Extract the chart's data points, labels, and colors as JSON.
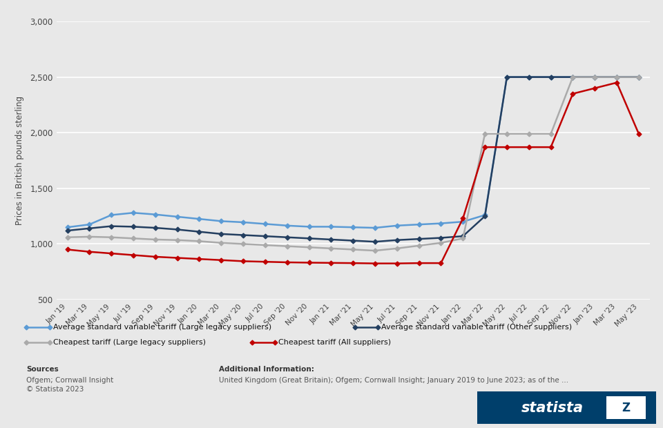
{
  "ylabel": "Prices in British pounds sterling",
  "ylim": [
    500,
    3000
  ],
  "yticks": [
    500,
    1000,
    1500,
    2000,
    2500,
    3000
  ],
  "background_color": "#e8e8e8",
  "plot_bg_color": "#e8e8e8",
  "series": {
    "avg_svt_large": {
      "label": "Average standard variable tariff (Large legacy suppliers)",
      "color": "#5B9BD5",
      "marker": "D",
      "markersize": 3.5,
      "linewidth": 1.8
    },
    "avg_svt_other": {
      "label": "Average standard variable tariff (Other suppliers)",
      "color": "#243F60",
      "marker": "D",
      "markersize": 3.5,
      "linewidth": 1.8
    },
    "cheapest_large": {
      "label": "Cheapest tariff (Large legacy suppliers)",
      "color": "#AAAAAA",
      "marker": "D",
      "markersize": 3.5,
      "linewidth": 1.8
    },
    "cheapest_all": {
      "label": "Cheapest tariff (All suppliers)",
      "color": "#C00000",
      "marker": "D",
      "markersize": 3.5,
      "linewidth": 1.8
    }
  },
  "x_labels": [
    "Jan '19",
    "Mar '19",
    "May '19",
    "Jul '19",
    "Sep '19",
    "Nov '19",
    "Jan '20",
    "Mar '20",
    "May '20",
    "Jul '20",
    "Sep '20",
    "Nov '20",
    "Jan '21",
    "Mar '21",
    "May '21",
    "Jul '21",
    "Sep '21",
    "Nov '21",
    "Jan '22",
    "Mar '22",
    "May '22",
    "Jul '22",
    "Sep '22",
    "Nov '22",
    "Jan '23",
    "Mar '23",
    "May '23"
  ],
  "data": {
    "avg_svt_large": [
      1150,
      1175,
      1260,
      1280,
      1265,
      1245,
      1225,
      1205,
      1195,
      1180,
      1165,
      1155,
      1155,
      1150,
      1145,
      1165,
      1175,
      1185,
      1200,
      1260,
      2500,
      2500,
      2500,
      2500,
      2500,
      2500,
      2500
    ],
    "avg_svt_other": [
      1120,
      1140,
      1160,
      1155,
      1145,
      1130,
      1110,
      1090,
      1080,
      1070,
      1060,
      1050,
      1040,
      1030,
      1020,
      1035,
      1045,
      1055,
      1070,
      1250,
      2500,
      2500,
      2500,
      2500,
      2500,
      2500,
      2500
    ],
    "cheapest_large": [
      1060,
      1065,
      1060,
      1050,
      1040,
      1035,
      1025,
      1010,
      1000,
      990,
      980,
      970,
      960,
      950,
      940,
      960,
      985,
      1010,
      1050,
      1990,
      1990,
      1990,
      1990,
      2500,
      2500,
      2500,
      2500
    ],
    "cheapest_all": [
      950,
      930,
      915,
      900,
      885,
      875,
      865,
      855,
      845,
      840,
      835,
      832,
      830,
      828,
      825,
      825,
      828,
      828,
      1230,
      1870,
      1870,
      1870,
      1870,
      2350,
      2400,
      2450,
      1990
    ]
  },
  "sources_text": "Sources",
  "sources_line2": "Ofgem; Cornwall Insight",
  "sources_line3": "© Statista 2023",
  "additional_label": "Additional Information:",
  "additional_text": "United Kingdom (Great Britain); Ofgem; Cornwall Insight; January 2019 to June 2023; as of the ...",
  "statista_bg": "#003F6B"
}
